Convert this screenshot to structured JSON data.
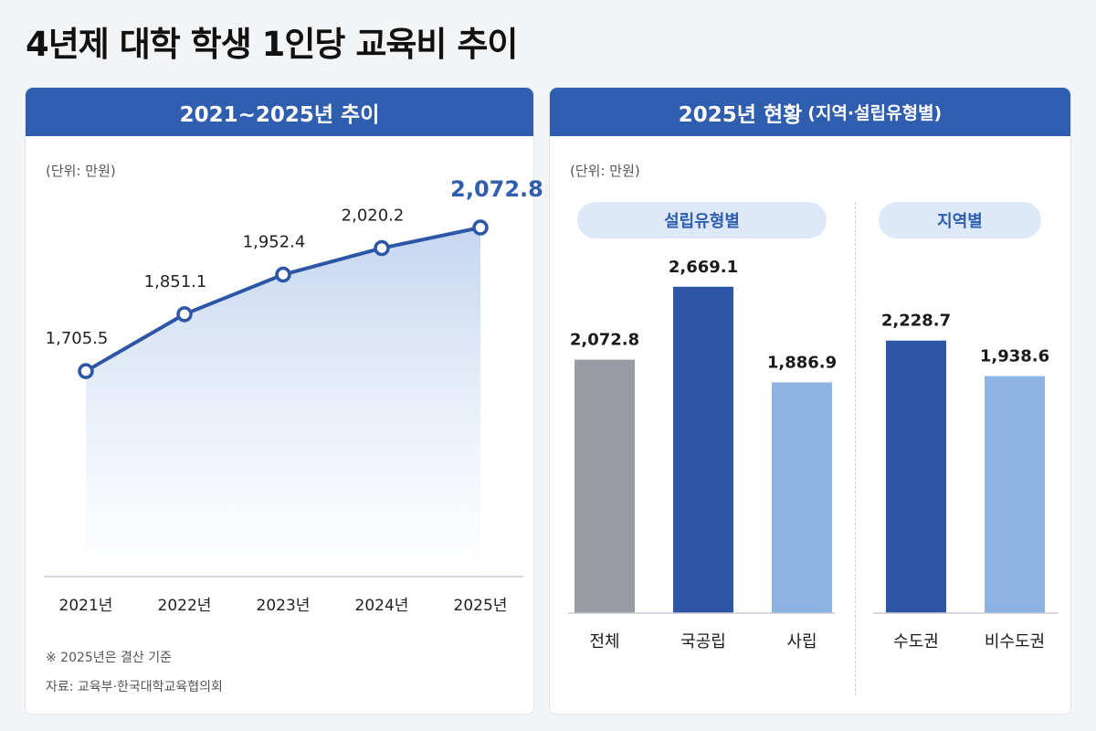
{
  "title": "4년제 대학 학생 1인당 교육비 추이",
  "left_panel": {
    "header": "2021~2025년 추이",
    "unit": "(단위: 만원)",
    "note": "※ 2025년은 결산 기준",
    "source": "자료: 교육부·한국대학교육협의회"
  },
  "right_panel": {
    "header_main": "2025년 현황",
    "header_sub": "(지역·설립유형별)",
    "unit": "(단위: 만원)",
    "group_type_label": "설립유형별",
    "group_region_label": "지역별"
  },
  "colors": {
    "brand_blue": "#2f5eae",
    "line_blue": "#2d57a6",
    "area_fill_top": "#c5d6f0",
    "gray_bar": "#999da3",
    "dark_blue_bar": "#2d57a6",
    "light_blue_bar": "#8db3e2",
    "highlight_label": "#2f5eae"
  },
  "chart_data": [
    {
      "type": "area",
      "x": [
        "2021년",
        "2022년",
        "2023년",
        "2024년",
        "2025년"
      ],
      "values": [
        1705.5,
        1851.1,
        1952.4,
        2020.2,
        2072.8
      ],
      "labels": [
        "1,705.5",
        "1,851.1",
        "1,952.4",
        "2,020.2",
        "2,072.8"
      ],
      "highlight_index": 4,
      "ylim": [
        1180,
        2150
      ]
    },
    {
      "type": "bar",
      "group": "설립유형별",
      "categories": [
        "전체",
        "국공립",
        "사립"
      ],
      "values": [
        2072.8,
        2669.1,
        1886.9
      ],
      "labels": [
        "2,072.8",
        "2,669.1",
        "1,886.9"
      ],
      "colors": [
        "#999da3",
        "#2d57a6",
        "#8db3e2"
      ],
      "ylim": [
        0,
        3400
      ]
    },
    {
      "type": "bar",
      "group": "지역별",
      "categories": [
        "수도권",
        "비수도권"
      ],
      "values": [
        2228.7,
        1938.6
      ],
      "labels": [
        "2,228.7",
        "1,938.6"
      ],
      "colors": [
        "#2d57a6",
        "#8db3e2"
      ],
      "ylim": [
        0,
        3400
      ]
    }
  ]
}
